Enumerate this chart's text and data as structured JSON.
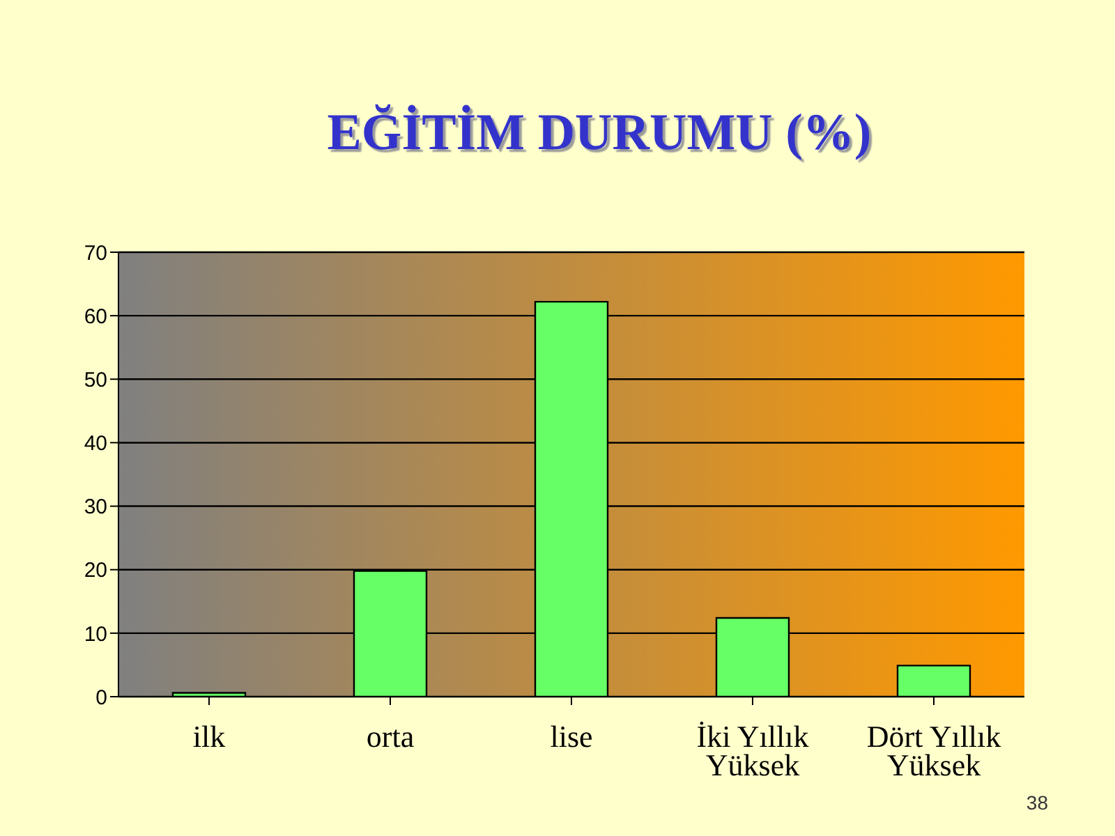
{
  "chart_data": {
    "type": "bar",
    "title": "EĞİTİM DURUMU (%)",
    "categories": [
      "ilk",
      "orta",
      "lise",
      "İki Yıllık Yüksek",
      "Dört Yıllık Yüksek"
    ],
    "values": [
      0.6,
      19.8,
      62.2,
      12.4,
      4.9
    ],
    "color": "#66ff66",
    "ylim": [
      0,
      70
    ],
    "yticks": [
      0,
      10,
      20,
      30,
      40,
      50,
      60,
      70
    ],
    "grid": "y",
    "annotations": [
      "38"
    ]
  }
}
